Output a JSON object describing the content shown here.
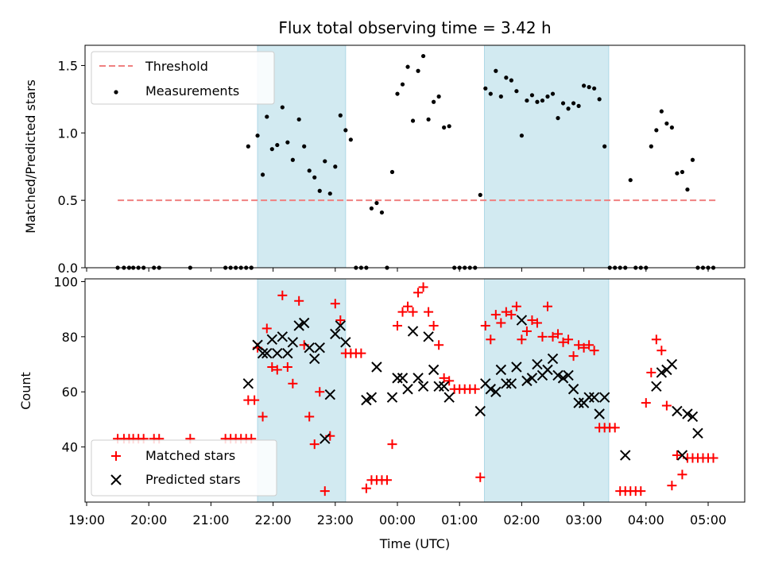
{
  "chart_data": [
    {
      "type": "scatter",
      "title": "Flux total observing time = 3.42 h",
      "ylabel": "Matched/Predicted stars",
      "xlabel": "",
      "ylim": [
        0,
        1.65
      ],
      "yticks": [
        0.0,
        0.5,
        1.0,
        1.5
      ],
      "ytick_labels": [
        "0.0",
        "0.5",
        "1.0",
        "1.5"
      ],
      "grid": false,
      "legend": "top-left",
      "shaded_intervals": [
        [
          "21:45",
          "23:10"
        ],
        [
          "01:24",
          "03:24"
        ]
      ],
      "shade_color": "#add8e6",
      "series": [
        {
          "name": "Threshold",
          "kind": "dashed-line",
          "color": "#f08080",
          "x": [
            "19:30",
            "05:10"
          ],
          "y": [
            0.5,
            0.5
          ]
        },
        {
          "name": "Measurements",
          "kind": "points",
          "color": "#000000",
          "x": [
            "19:30",
            "19:36",
            "19:41",
            "19:45",
            "19:50",
            "19:55",
            "20:05",
            "20:10",
            "20:40",
            "21:14",
            "21:19",
            "21:24",
            "21:29",
            "21:34",
            "21:39",
            "21:39",
            "21:36",
            "21:45",
            "21:50",
            "21:54",
            "21:59",
            "22:04",
            "22:09",
            "22:14",
            "22:19",
            "22:25",
            "22:30",
            "22:35",
            "22:40",
            "22:45",
            "22:50",
            "22:55",
            "23:00",
            "23:05",
            "23:10",
            "23:15",
            "23:20",
            "23:25",
            "23:30",
            "23:35",
            "23:40",
            "23:45",
            "23:50",
            "23:55",
            "00:00",
            "00:05",
            "00:10",
            "00:15",
            "00:20",
            "00:25",
            "00:30",
            "00:35",
            "00:40",
            "00:45",
            "00:50",
            "00:55",
            "01:00",
            "01:05",
            "01:10",
            "01:15",
            "01:20",
            "01:25",
            "01:30",
            "01:35",
            "01:40",
            "01:45",
            "01:50",
            "01:55",
            "02:00",
            "02:05",
            "02:10",
            "02:15",
            "02:20",
            "02:25",
            "02:30",
            "02:35",
            "02:40",
            "02:45",
            "02:50",
            "02:55",
            "03:00",
            "03:05",
            "03:10",
            "03:15",
            "03:20",
            "03:25",
            "03:30",
            "03:35",
            "03:40",
            "03:45",
            "03:50",
            "03:55",
            "04:00",
            "04:05",
            "04:10",
            "04:15",
            "04:20",
            "04:25",
            "04:30",
            "04:35",
            "04:40",
            "04:45",
            "04:50",
            "04:55",
            "05:00",
            "05:05"
          ],
          "y": [
            0.0,
            0.0,
            0.0,
            0.0,
            0.0,
            0.0,
            0.0,
            0.0,
            0.0,
            0.0,
            0.0,
            0.0,
            0.0,
            0.0,
            0.0,
            0.0,
            0.9,
            0.98,
            0.69,
            1.12,
            0.88,
            0.91,
            1.19,
            0.93,
            0.8,
            1.1,
            0.9,
            0.72,
            0.67,
            0.57,
            0.79,
            0.55,
            0.75,
            1.13,
            1.02,
            0.95,
            0.0,
            0.0,
            0.0,
            0.44,
            0.48,
            0.41,
            0.0,
            0.71,
            1.29,
            1.36,
            1.49,
            1.09,
            1.46,
            1.57,
            1.1,
            1.23,
            1.27,
            1.04,
            1.05,
            0.0,
            0.0,
            0.0,
            0.0,
            0.0,
            0.54,
            1.33,
            1.29,
            1.46,
            1.27,
            1.41,
            1.39,
            1.31,
            0.98,
            1.24,
            1.28,
            1.23,
            1.24,
            1.27,
            1.29,
            1.11,
            1.22,
            1.18,
            1.22,
            1.2,
            1.35,
            1.34,
            1.33,
            1.25,
            0.9,
            0.0,
            0.0,
            0.0,
            0.0,
            0.65,
            0.0,
            0.0,
            0.0,
            0.9,
            1.02,
            1.16,
            1.07,
            1.04,
            0.7,
            0.71,
            0.58,
            0.8,
            0.0,
            0.0,
            0.0,
            0.0
          ]
        }
      ]
    },
    {
      "type": "scatter",
      "title": "",
      "ylabel": "Count",
      "xlabel": "Time (UTC)",
      "ylim": [
        20,
        101
      ],
      "yticks": [
        40,
        60,
        80,
        100
      ],
      "ytick_labels": [
        "40",
        "60",
        "80",
        "100"
      ],
      "xtick_labels": [
        "19:00",
        "20:00",
        "21:00",
        "22:00",
        "23:00",
        "00:00",
        "01:00",
        "02:00",
        "03:00",
        "04:00",
        "05:00"
      ],
      "grid": false,
      "legend": "bottom-left",
      "shaded_intervals": [
        [
          "21:45",
          "23:10"
        ],
        [
          "01:24",
          "03:24"
        ]
      ],
      "shade_color": "#add8e6",
      "series": [
        {
          "name": "Matched stars",
          "kind": "plus",
          "color": "#ff0000",
          "x": [
            "19:30",
            "19:36",
            "19:41",
            "19:45",
            "19:50",
            "19:55",
            "20:05",
            "20:10",
            "20:40",
            "21:14",
            "21:19",
            "21:24",
            "21:29",
            "21:34",
            "21:39",
            "21:36",
            "21:42",
            "21:45",
            "21:50",
            "21:54",
            "21:59",
            "22:04",
            "22:09",
            "22:14",
            "22:19",
            "22:25",
            "22:30",
            "22:35",
            "22:40",
            "22:45",
            "22:50",
            "22:55",
            "23:00",
            "23:05",
            "23:10",
            "23:15",
            "23:20",
            "23:25",
            "23:30",
            "23:35",
            "23:40",
            "23:45",
            "23:50",
            "23:55",
            "00:00",
            "00:05",
            "00:10",
            "00:15",
            "00:20",
            "00:25",
            "00:30",
            "00:35",
            "00:40",
            "00:45",
            "00:50",
            "00:55",
            "01:00",
            "01:05",
            "01:10",
            "01:15",
            "01:20",
            "01:25",
            "01:30",
            "01:35",
            "01:40",
            "01:45",
            "01:50",
            "01:55",
            "02:00",
            "02:05",
            "02:10",
            "02:15",
            "02:20",
            "02:25",
            "02:30",
            "02:35",
            "02:40",
            "02:45",
            "02:50",
            "02:55",
            "03:00",
            "03:05",
            "03:10",
            "03:15",
            "03:20",
            "03:25",
            "03:30",
            "03:35",
            "03:40",
            "03:45",
            "03:50",
            "03:55",
            "04:00",
            "04:05",
            "04:10",
            "04:15",
            "04:20",
            "04:25",
            "04:30",
            "04:35",
            "04:40",
            "04:45",
            "04:50",
            "04:55",
            "05:00",
            "05:05"
          ],
          "y": [
            43,
            43,
            43,
            43,
            43,
            43,
            43,
            43,
            43,
            43,
            43,
            43,
            43,
            43,
            43,
            57,
            57,
            76,
            51,
            83,
            69,
            68,
            95,
            69,
            63,
            93,
            77,
            51,
            41,
            60,
            24,
            44,
            92,
            86,
            74,
            74,
            74,
            74,
            25,
            28,
            28,
            28,
            28,
            41,
            84,
            89,
            91,
            89,
            96,
            98,
            89,
            84,
            77,
            65,
            64,
            61,
            61,
            61,
            61,
            61,
            29,
            84,
            79,
            88,
            85,
            89,
            88,
            91,
            79,
            82,
            86,
            85,
            80,
            91,
            80,
            81,
            78,
            79,
            73,
            77,
            76,
            77,
            75,
            47,
            47,
            47,
            47,
            24,
            24,
            24,
            24,
            24,
            56,
            67,
            79,
            75,
            55,
            26,
            37,
            30,
            36,
            36,
            36,
            36,
            36,
            36
          ]
        },
        {
          "name": "Predicted stars",
          "kind": "x",
          "color": "#000000",
          "x": [
            "21:36",
            "21:45",
            "21:50",
            "21:54",
            "21:59",
            "22:04",
            "22:09",
            "22:14",
            "22:19",
            "22:25",
            "22:30",
            "22:35",
            "22:40",
            "22:45",
            "22:50",
            "22:55",
            "23:00",
            "23:05",
            "23:10",
            "23:30",
            "23:35",
            "23:40",
            "23:55",
            "00:00",
            "00:05",
            "00:10",
            "00:15",
            "00:20",
            "00:25",
            "00:30",
            "00:35",
            "00:40",
            "00:45",
            "00:50",
            "01:20",
            "01:25",
            "01:30",
            "01:35",
            "01:40",
            "01:45",
            "01:50",
            "01:55",
            "02:00",
            "02:05",
            "02:10",
            "02:15",
            "02:20",
            "02:25",
            "02:30",
            "02:35",
            "02:40",
            "02:45",
            "02:50",
            "02:55",
            "03:00",
            "03:05",
            "03:10",
            "03:15",
            "03:20",
            "03:40",
            "04:10",
            "04:15",
            "04:20",
            "04:25",
            "04:30",
            "04:35",
            "04:40",
            "04:45",
            "04:50"
          ],
          "y": [
            63,
            77,
            74,
            74,
            79,
            74,
            80,
            74,
            78,
            84,
            85,
            76,
            72,
            76,
            43,
            59,
            81,
            84,
            78,
            57,
            58,
            69,
            58,
            65,
            65,
            61,
            82,
            65,
            62,
            80,
            68,
            62,
            62,
            58,
            53,
            63,
            61,
            60,
            68,
            63,
            63,
            69,
            86,
            64,
            65,
            70,
            66,
            68,
            72,
            66,
            65,
            66,
            61,
            56,
            56,
            58,
            58,
            52,
            58,
            37,
            62,
            67,
            68,
            70,
            53,
            37,
            52,
            51,
            45
          ]
        }
      ]
    }
  ]
}
